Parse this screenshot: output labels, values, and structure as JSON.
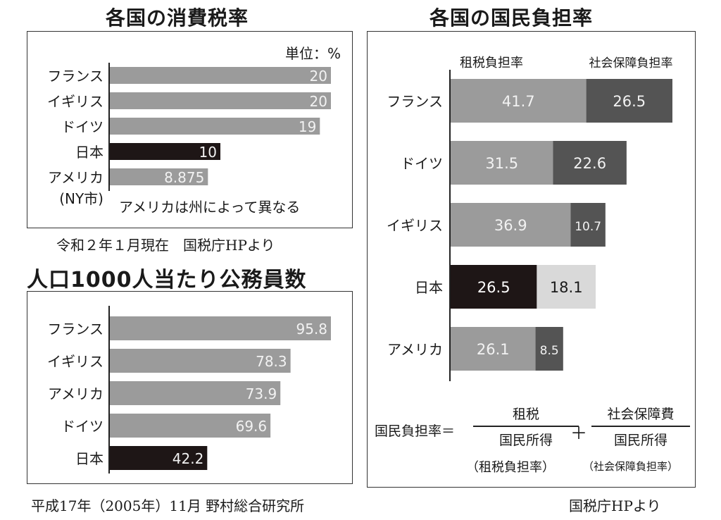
{
  "charts": {
    "tax": {
      "title": "各国の消費税率",
      "unit": "単位：%",
      "note": "アメリカは州によって異なる",
      "source": "令和２年１月現在　国税庁HPより"
    },
    "civil": {
      "title": "人口1000人当たり公務員数",
      "source": "平成17年（2005年）11月 野村総合研究所"
    },
    "burden": {
      "title": "各国の国民負担率",
      "source": "国税庁HPより",
      "formula": {
        "lhs": "国民負担率＝",
        "num1": "租税",
        "den1": "国民所得",
        "sub1": "（租税負担率）",
        "plus": "＋",
        "num2": "社会保障費",
        "den2": "国民所得",
        "sub2": "（社会保障負担率）"
      }
    }
  },
  "chart_data": [
    {
      "type": "bar",
      "title": "各国の消費税率",
      "orientation": "horizontal",
      "unit": "単位：%",
      "categories": [
        "フランス",
        "イギリス",
        "ドイツ",
        "日本",
        "アメリカ\n(NY市)"
      ],
      "values": [
        20,
        20,
        19,
        10,
        8.875
      ],
      "value_labels": [
        "20",
        "20",
        "19",
        "10",
        "8.875"
      ],
      "highlight": "日本",
      "xlim": [
        0,
        20
      ]
    },
    {
      "type": "bar",
      "title": "人口1000人当たり公務員数",
      "orientation": "horizontal",
      "categories": [
        "フランス",
        "イギリス",
        "アメリカ",
        "ドイツ",
        "日本"
      ],
      "values": [
        95.8,
        78.3,
        73.9,
        69.6,
        42.2
      ],
      "value_labels": [
        "95.8",
        "78.3",
        "73.9",
        "69.6",
        "42.2"
      ],
      "highlight": "日本",
      "xlim": [
        0,
        95.8
      ]
    },
    {
      "type": "bar",
      "stacked": true,
      "orientation": "horizontal",
      "title": "各国の国民負担率",
      "categories": [
        "フランス",
        "ドイツ",
        "イギリス",
        "日本",
        "アメリカ"
      ],
      "series": [
        {
          "name": "租税負担率",
          "values": [
            41.7,
            31.5,
            36.9,
            26.5,
            26.1
          ]
        },
        {
          "name": "社会保障負担率",
          "values": [
            26.5,
            22.6,
            10.7,
            18.1,
            8.5
          ]
        }
      ],
      "value_labels": [
        [
          "41.7",
          "31.5",
          "36.9",
          "26.5",
          "26.1"
        ],
        [
          "26.5",
          "22.6",
          "10.7",
          "18.1",
          "8.5"
        ]
      ],
      "highlight": "日本",
      "xlim": [
        0,
        68.2
      ]
    }
  ],
  "colors": {
    "bar": "#9b9b9b",
    "highlight": "#1e1616",
    "social": "#545454",
    "social_highlight": "#d9d9d9",
    "axis": "#222222",
    "label_on_bar": "#f2f2f2"
  }
}
